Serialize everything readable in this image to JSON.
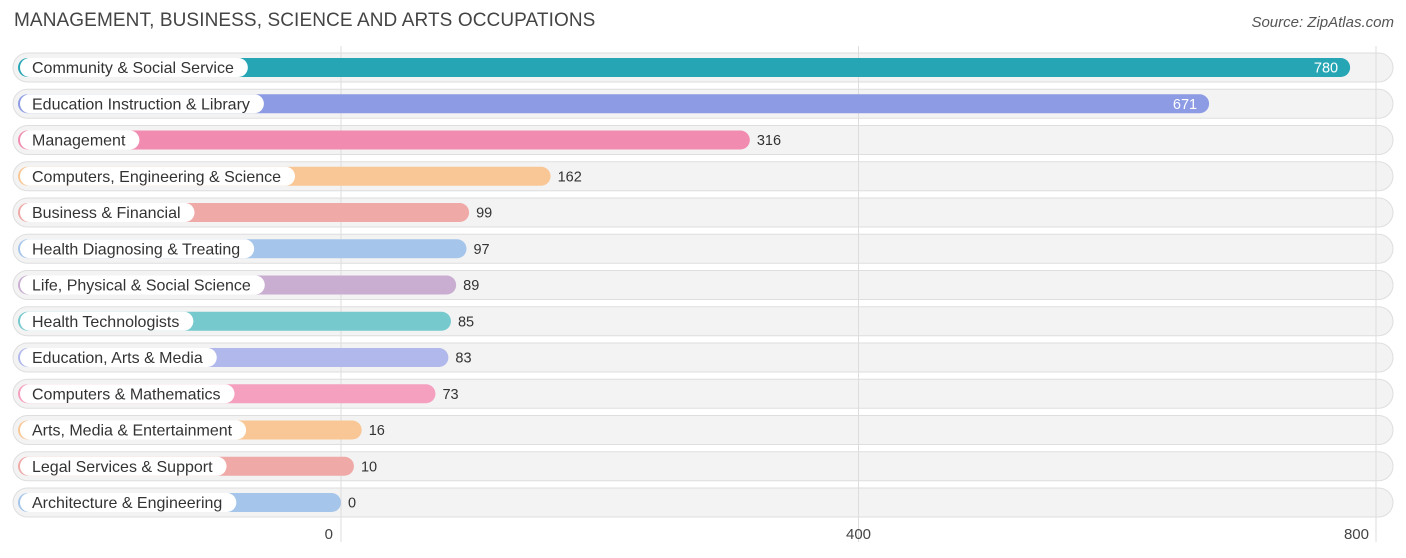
{
  "header": {
    "title": "MANAGEMENT, BUSINESS, SCIENCE AND ARTS OCCUPATIONS",
    "source": "Source: ZipAtlas.com"
  },
  "chart_data": {
    "type": "bar",
    "orientation": "horizontal",
    "title": "MANAGEMENT, BUSINESS, SCIENCE AND ARTS OCCUPATIONS",
    "xlim": [
      0,
      800
    ],
    "ticks": [
      0,
      400,
      800
    ],
    "tick_labels": [
      "0",
      "400",
      "800"
    ],
    "grid": true,
    "categories": [
      "Community & Social Service",
      "Education Instruction & Library",
      "Management",
      "Computers, Engineering & Science",
      "Business & Financial",
      "Health Diagnosing & Treating",
      "Life, Physical & Social Science",
      "Health Technologists",
      "Education, Arts & Media",
      "Computers & Mathematics",
      "Arts, Media & Entertainment",
      "Legal Services & Support",
      "Architecture & Engineering"
    ],
    "values": [
      780,
      671,
      316,
      162,
      99,
      97,
      89,
      85,
      83,
      73,
      16,
      10,
      0
    ],
    "value_labels": [
      "780",
      "671",
      "316",
      "162",
      "99",
      "97",
      "89",
      "85",
      "83",
      "73",
      "16",
      "10",
      "0"
    ],
    "colors": [
      "#26a6b5",
      "#8c9be3",
      "#f18cb0",
      "#f9c796",
      "#efa9a7",
      "#a5c5ea",
      "#c9aed2",
      "#76c9cd",
      "#b0b8ec",
      "#f5a0bf",
      "#f9c796",
      "#efa9a7",
      "#a5c5ea"
    ]
  }
}
